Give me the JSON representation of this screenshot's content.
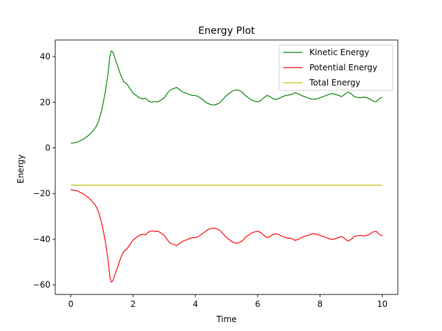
{
  "chart_data": {
    "type": "line",
    "title": "Energy Plot",
    "xlabel": "Time",
    "ylabel": "Energy",
    "xlim": [
      -0.5,
      10.5
    ],
    "ylim": [
      -64.2,
      47.3
    ],
    "xticks": [
      0,
      2,
      4,
      6,
      8,
      10
    ],
    "yticks": [
      -60,
      -40,
      -20,
      0,
      20,
      40
    ],
    "grid": false,
    "legend_position": "top-right",
    "series": [
      {
        "name": "Kinetic Energy",
        "color": "#008000",
        "x": [
          0,
          0.2,
          0.4,
          0.6,
          0.8,
          0.9,
          1.0,
          1.1,
          1.2,
          1.25,
          1.3,
          1.35,
          1.4,
          1.5,
          1.6,
          1.7,
          1.8,
          1.9,
          2.0,
          2.1,
          2.2,
          2.3,
          2.4,
          2.5,
          2.6,
          2.7,
          2.8,
          2.9,
          3.0,
          3.1,
          3.2,
          3.3,
          3.4,
          3.5,
          3.6,
          3.7,
          3.8,
          3.9,
          4.0,
          4.1,
          4.2,
          4.3,
          4.4,
          4.5,
          4.6,
          4.7,
          4.8,
          4.9,
          5.0,
          5.1,
          5.2,
          5.3,
          5.4,
          5.5,
          5.6,
          5.7,
          5.8,
          5.9,
          6.0,
          6.1,
          6.2,
          6.3,
          6.4,
          6.5,
          6.6,
          6.7,
          6.8,
          6.9,
          7.0,
          7.1,
          7.2,
          7.3,
          7.4,
          7.5,
          7.6,
          7.7,
          7.8,
          7.9,
          8.0,
          8.1,
          8.2,
          8.3,
          8.4,
          8.5,
          8.6,
          8.7,
          8.8,
          8.9,
          9.0,
          9.1,
          9.2,
          9.3,
          9.4,
          9.5,
          9.6,
          9.7,
          9.8,
          9.9,
          10.0
        ],
        "y": [
          2,
          2.5,
          3.8,
          5.8,
          9,
          12,
          17,
          24,
          33,
          40,
          42.5,
          42,
          40,
          36,
          32,
          29,
          28,
          26,
          24,
          23,
          22,
          21.5,
          21.8,
          20.5,
          20,
          20.3,
          20.2,
          21,
          22,
          24,
          25.5,
          26,
          26.5,
          25.5,
          24.5,
          24,
          23.5,
          23,
          23,
          22.5,
          21.5,
          20.5,
          19.5,
          19,
          18.8,
          19.2,
          20,
          21.5,
          23,
          24,
          25,
          25.5,
          25.2,
          24.5,
          23,
          22,
          21,
          20.5,
          20.2,
          20.8,
          22,
          23,
          22.5,
          21.5,
          21.3,
          21.8,
          22.5,
          23,
          23.2,
          23.5,
          24.2,
          23.8,
          23,
          22.5,
          22,
          21.5,
          21.3,
          21.5,
          22,
          22.5,
          23,
          23.5,
          23.8,
          23.5,
          23,
          22.5,
          23.5,
          24.5,
          23.8,
          22.5,
          22.2,
          22,
          22.3,
          22,
          21.5,
          20.5,
          20.2,
          21.5,
          22.3
        ]
      },
      {
        "name": "Potential Energy",
        "color": "#ff0000",
        "x": [
          0,
          0.2,
          0.4,
          0.6,
          0.8,
          0.9,
          1.0,
          1.1,
          1.2,
          1.25,
          1.3,
          1.35,
          1.4,
          1.5,
          1.6,
          1.7,
          1.8,
          1.9,
          2.0,
          2.1,
          2.2,
          2.3,
          2.4,
          2.5,
          2.6,
          2.7,
          2.8,
          2.9,
          3.0,
          3.1,
          3.2,
          3.3,
          3.4,
          3.5,
          3.6,
          3.7,
          3.8,
          3.9,
          4.0,
          4.1,
          4.2,
          4.3,
          4.4,
          4.5,
          4.6,
          4.7,
          4.8,
          4.9,
          5.0,
          5.1,
          5.2,
          5.3,
          5.4,
          5.5,
          5.6,
          5.7,
          5.8,
          5.9,
          6.0,
          6.1,
          6.2,
          6.3,
          6.4,
          6.5,
          6.6,
          6.7,
          6.8,
          6.9,
          7.0,
          7.1,
          7.2,
          7.3,
          7.4,
          7.5,
          7.6,
          7.7,
          7.8,
          7.9,
          8.0,
          8.1,
          8.2,
          8.3,
          8.4,
          8.5,
          8.6,
          8.7,
          8.8,
          8.9,
          9.0,
          9.1,
          9.2,
          9.3,
          9.4,
          9.5,
          9.6,
          9.7,
          9.8,
          9.9,
          10.0
        ],
        "y": [
          -18.3,
          -18.8,
          -20.1,
          -22.1,
          -25.3,
          -28.3,
          -33.3,
          -40.3,
          -49.3,
          -56.3,
          -58.8,
          -58.3,
          -56.3,
          -52.3,
          -48.3,
          -45.3,
          -44.3,
          -42.3,
          -40.3,
          -39.3,
          -38.3,
          -37.8,
          -38.1,
          -36.8,
          -36.3,
          -36.6,
          -36.5,
          -37.3,
          -38.3,
          -40.3,
          -41.8,
          -42.3,
          -42.8,
          -41.8,
          -40.8,
          -40.3,
          -39.8,
          -39.3,
          -39.3,
          -38.8,
          -37.8,
          -36.8,
          -35.8,
          -35.3,
          -35.1,
          -35.5,
          -36.3,
          -37.8,
          -39.3,
          -40.3,
          -41.3,
          -41.8,
          -41.5,
          -40.8,
          -39.3,
          -38.3,
          -37.3,
          -36.8,
          -36.5,
          -37.1,
          -38.3,
          -39.3,
          -38.8,
          -37.8,
          -37.6,
          -38.1,
          -38.8,
          -39.3,
          -39.5,
          -39.8,
          -40.5,
          -40.1,
          -39.3,
          -38.8,
          -38.3,
          -37.8,
          -37.6,
          -37.8,
          -38.3,
          -38.8,
          -39.3,
          -39.8,
          -40.1,
          -39.8,
          -39.3,
          -38.8,
          -39.8,
          -40.8,
          -40.1,
          -38.8,
          -38.5,
          -38.3,
          -38.6,
          -38.3,
          -37.8,
          -36.8,
          -36.5,
          -37.8,
          -38.6
        ]
      },
      {
        "name": "Total Energy",
        "color": "#bfbf00",
        "x": [
          0,
          10
        ],
        "y": [
          -16.3,
          -16.3
        ]
      }
    ]
  }
}
